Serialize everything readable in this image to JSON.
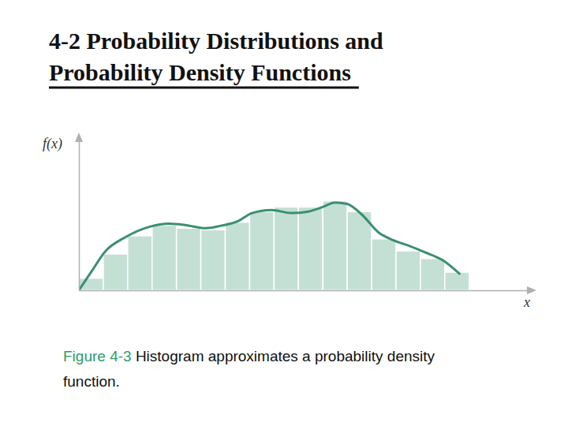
{
  "chart_data": {
    "type": "histogram",
    "title": [
      "4-2 Probability Distributions and",
      "Probability Density Functions"
    ],
    "xlabel": "x",
    "ylabel": "f(x)",
    "caption_label": "Figure 4-3",
    "caption": "Histogram approximates a probability density function.",
    "bins": [
      0,
      1,
      2,
      3,
      4,
      5,
      6,
      7,
      8,
      9,
      10,
      11,
      12,
      13,
      14,
      15,
      16
    ],
    "values": [
      0.8,
      2.4,
      3.6,
      4.3,
      4.1,
      4.0,
      4.5,
      5.2,
      5.5,
      5.5,
      5.9,
      5.2,
      3.4,
      2.6,
      2.1,
      1.2
    ],
    "color": "#c4e0d5",
    "xlim": [
      0,
      18.5
    ],
    "ylim": [
      0,
      10
    ],
    "tick_labels": false,
    "series": [
      {
        "type": "line",
        "color": "#3a8f72",
        "x": [
          0,
          0.5,
          1.1,
          1.9,
          2.9,
          3.7,
          4.4,
          5.2,
          5.8,
          6.5,
          7.1,
          7.9,
          8.7,
          9.4,
          10.0,
          10.5,
          11.0,
          11.6,
          12.3,
          12.9,
          13.6,
          14.2,
          14.9,
          15.6
        ],
        "values": [
          0,
          1.2,
          2.6,
          3.5,
          4.2,
          4.4,
          4.3,
          4.1,
          4.25,
          4.55,
          5.1,
          5.3,
          5.1,
          5.2,
          5.5,
          5.8,
          5.7,
          5.0,
          3.8,
          3.3,
          2.9,
          2.5,
          2.0,
          1.1
        ]
      }
    ]
  }
}
